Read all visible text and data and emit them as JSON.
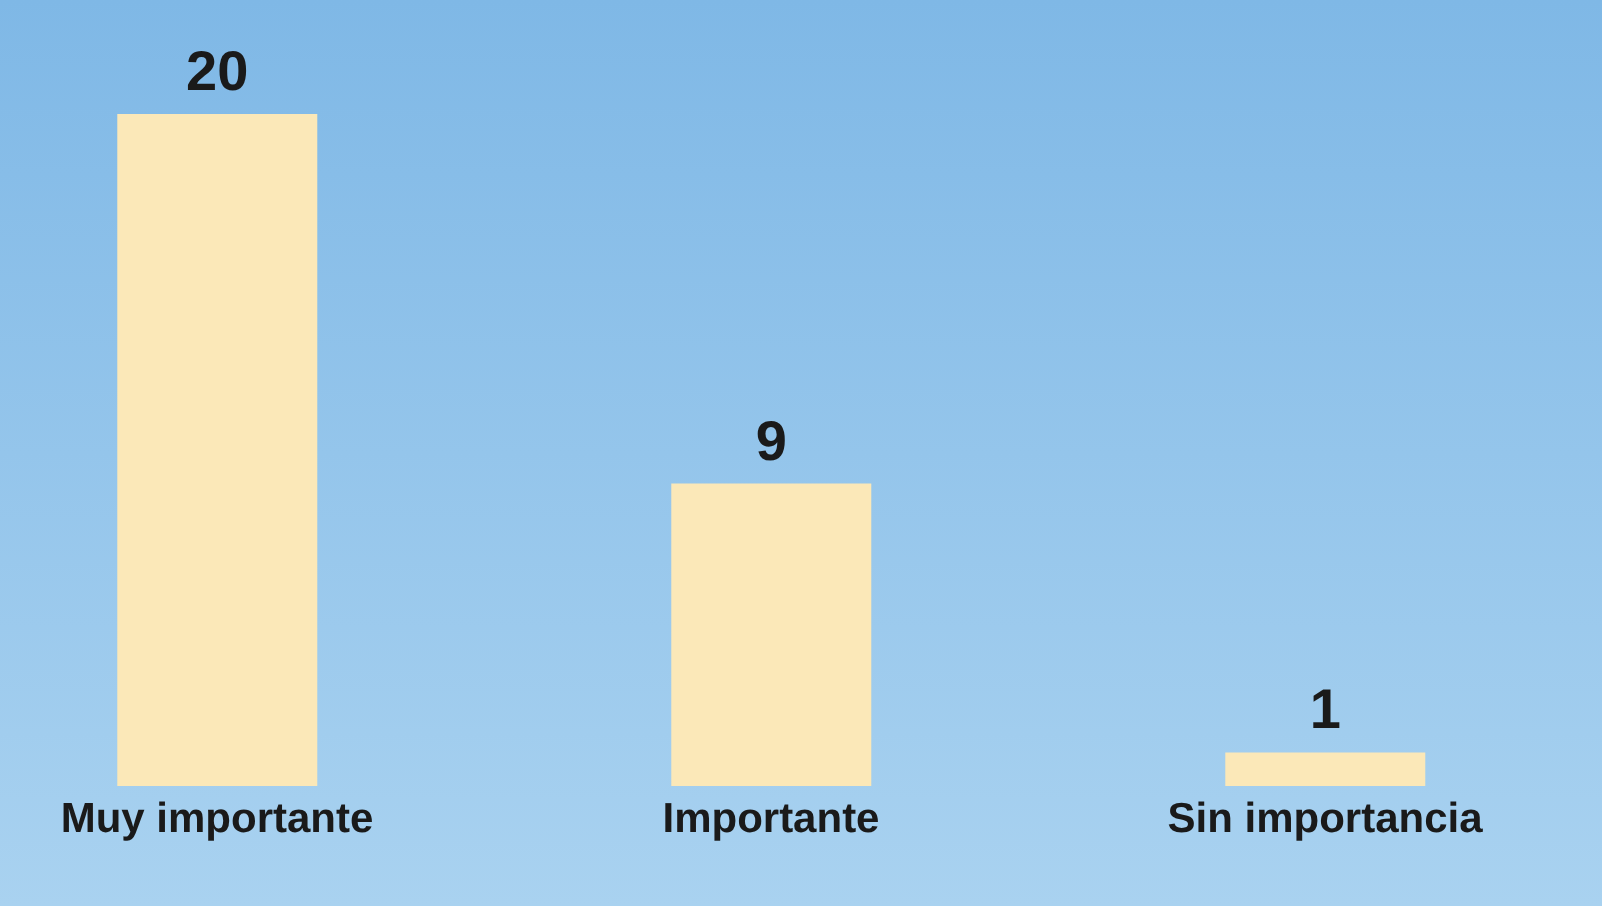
{
  "chart_data": {
    "type": "bar",
    "categories": [
      "Muy importante",
      "Importante",
      "Sin importancia"
    ],
    "values": [
      20,
      9,
      1
    ],
    "color": "#fbe8b8",
    "data_labels": true,
    "grid": false,
    "legend": false
  }
}
